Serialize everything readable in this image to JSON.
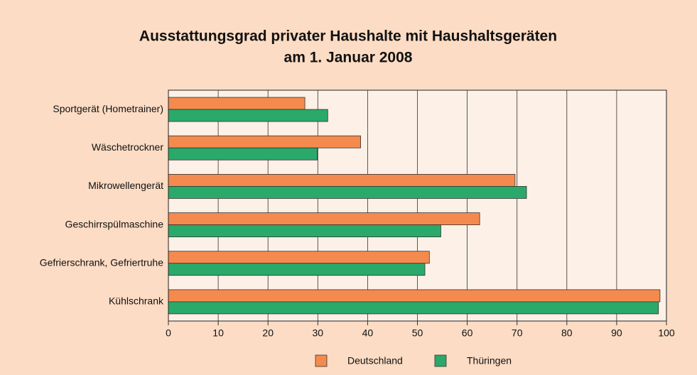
{
  "chart_data": {
    "type": "hbar",
    "title": [
      "Ausstattungsgrad privater Haushalte mit Haushaltsgeräten",
      "am 1. Januar 2008"
    ],
    "categories": [
      "Sportgerät (Hometrainer)",
      "Wäschetrockner",
      "Mikrowellengerät",
      "Geschirrspülmaschine",
      "Gefrierschrank, Gefriertruhe",
      "Kühlschrank"
    ],
    "series": [
      {
        "name": "Deutschland",
        "color": "#f58a4e",
        "values": [
          27.4,
          38.6,
          69.6,
          62.5,
          52.4,
          98.7
        ]
      },
      {
        "name": "Thüringen",
        "color": "#2aa96a",
        "values": [
          32.0,
          29.9,
          71.9,
          54.7,
          51.5,
          98.4
        ]
      }
    ],
    "xlim": [
      0,
      100
    ],
    "xticks": [
      0,
      10,
      20,
      30,
      40,
      50,
      60,
      70,
      80,
      90,
      100
    ],
    "grid": true,
    "legend": "bottom"
  }
}
